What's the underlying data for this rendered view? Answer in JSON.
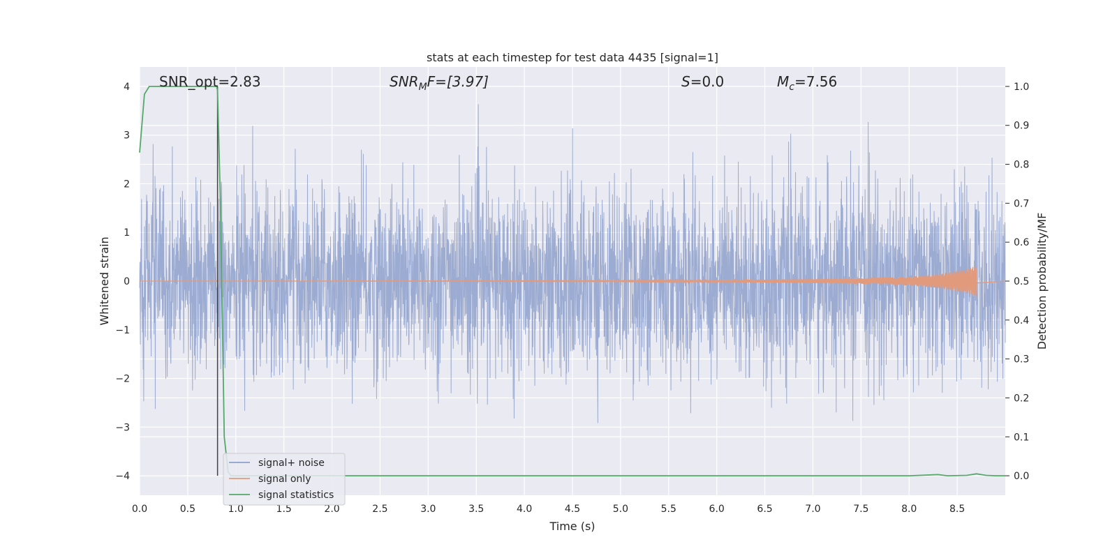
{
  "chart_data": {
    "type": "line",
    "title": "stats at each timestep for test data 4435 [signal=1]",
    "xlabel": "Time (s)",
    "ylabel": "Whitened strain",
    "y2label": "Detection probability/MF",
    "xlim": [
      0,
      9.0
    ],
    "ylim": [
      -4.4,
      4.4
    ],
    "y2lim": [
      -0.05,
      1.05
    ],
    "grid": true,
    "legend_position": "lower-left",
    "x_ticks": [
      "0.0",
      "0.5",
      "1.0",
      "1.5",
      "2.0",
      "2.5",
      "3.0",
      "3.5",
      "4.0",
      "4.5",
      "5.0",
      "5.5",
      "6.0",
      "6.5",
      "7.0",
      "7.5",
      "8.0",
      "8.5"
    ],
    "y_ticks": [
      "4",
      "3",
      "2",
      "1",
      "0",
      "−1",
      "−2",
      "−3",
      "−4"
    ],
    "y2_ticks": [
      "1.0",
      "0.9",
      "0.8",
      "0.7",
      "0.6",
      "0.5",
      "0.4",
      "0.3",
      "0.2",
      "0.1",
      "0.0"
    ],
    "annotations": {
      "snr_opt": "SNR_opt=2.83",
      "snr_mf_main": "SNR",
      "snr_mf_sub": "M",
      "snr_mf_rest": "F=[3.97]",
      "s_main": "S",
      "s_rest": "=0.0",
      "mc_main": "M",
      "mc_sub": "c",
      "mc_rest": "=7.56"
    },
    "vertical_marker_x": 0.81,
    "series": [
      {
        "name": "signal+ noise",
        "color": "#8da0cb",
        "description": "whitened noisy strain, amplitude roughly within ±2.5 with spikes to ±4"
      },
      {
        "name": "signal only",
        "color": "#e29a7c",
        "envelope": {
          "x": [
            5.0,
            6.0,
            7.0,
            7.5,
            8.0,
            8.3,
            8.6,
            8.7
          ],
          "amp": [
            0.01,
            0.02,
            0.04,
            0.06,
            0.09,
            0.14,
            0.25,
            0.32
          ]
        }
      },
      {
        "name": "signal statistics",
        "color": "#55a868",
        "axis": "right",
        "x": [
          0.0,
          0.05,
          0.1,
          0.2,
          0.3,
          0.5,
          0.7,
          0.8,
          0.81,
          0.84,
          0.86,
          0.88,
          0.92,
          0.95,
          1.0,
          1.2,
          2.0,
          4.0,
          6.0,
          8.0,
          8.3,
          8.4,
          8.6,
          8.7,
          8.8,
          8.9,
          9.0
        ],
        "y": [
          0.83,
          0.98,
          1.0,
          1.0,
          1.0,
          1.0,
          1.0,
          1.0,
          0.99,
          0.7,
          0.4,
          0.1,
          0.01,
          0.0,
          0.0,
          0.0,
          0.0,
          0.0,
          0.0,
          0.0,
          0.003,
          0.0,
          0.001,
          0.005,
          0.001,
          0.0,
          0.0
        ]
      }
    ]
  }
}
